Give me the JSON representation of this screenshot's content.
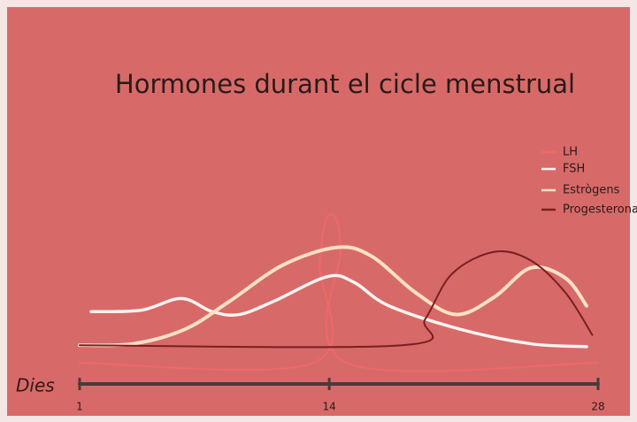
{
  "chart_data": {
    "type": "line",
    "title": "Hormones durant el cicle menstrual",
    "xlabel": "Dies",
    "xlim": [
      1,
      28
    ],
    "xticks": [
      1,
      14,
      28
    ],
    "ylim": [
      0,
      100
    ],
    "legend": "top-right",
    "series": [
      {
        "name": "LH",
        "color": "#f0686a",
        "x": [
          1,
          13.2,
          13.5,
          13.8,
          14.3,
          14.6,
          14.9,
          28
        ],
        "values": [
          0,
          0,
          67,
          97,
          100,
          79,
          0,
          0
        ]
      },
      {
        "name": "FSH",
        "color": "#fbf3f0",
        "x": [
          1.6,
          4.2,
          6.3,
          7.9,
          9.3,
          11.1,
          13.9,
          15.3,
          17.1,
          20.8,
          24.5,
          27.4
        ],
        "values": [
          35,
          36,
          44,
          35,
          33,
          42,
          59,
          55,
          39,
          23,
          13,
          11
        ]
      },
      {
        "name": "Estrògens",
        "color": "#fbe0c4",
        "x": [
          1,
          3.8,
          6.5,
          8.8,
          11.6,
          14.4,
          16.2,
          18.5,
          20.6,
          22.6,
          24.5,
          26.3,
          27.4
        ],
        "values": [
          12,
          13,
          23,
          42,
          67,
          79,
          73,
          48,
          33,
          45,
          65,
          58,
          39
        ]
      },
      {
        "name": "Progesterona",
        "color": "#7a1e22",
        "x": [
          1,
          17.8,
          19,
          20.4,
          22.6,
          24.5,
          26.3,
          27.7
        ],
        "values": [
          12,
          12,
          30,
          61,
          76,
          70,
          48,
          19
        ]
      }
    ]
  }
}
